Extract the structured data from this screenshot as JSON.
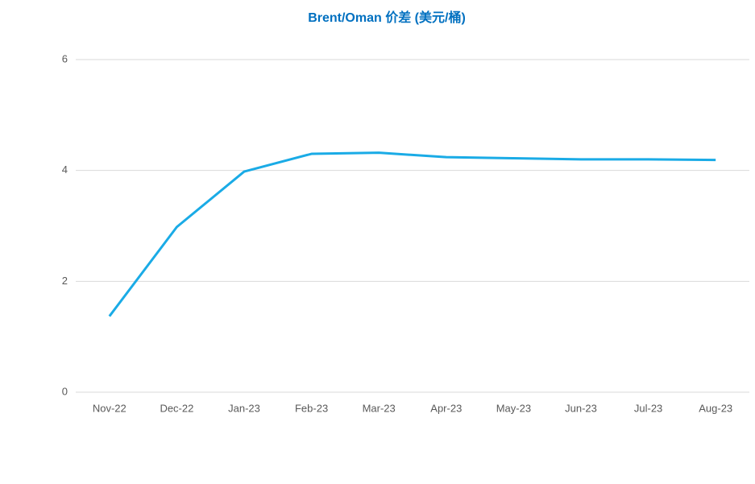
{
  "chart_data": {
    "type": "line",
    "title": "Brent/Oman 价差 (美元/桶)",
    "categories": [
      "Nov-22",
      "Dec-22",
      "Jan-23",
      "Feb-23",
      "Mar-23",
      "Apr-23",
      "May-23",
      "Jun-23",
      "Jul-23",
      "Aug-23"
    ],
    "series": [
      {
        "name": "Brent/Oman",
        "color": "#1aabe6",
        "values": [
          1.37,
          2.98,
          3.98,
          4.3,
          4.32,
          4.24,
          4.22,
          4.2,
          4.2,
          4.19
        ]
      }
    ],
    "ylim": [
      0,
      6
    ],
    "yticks": [
      0,
      2,
      4,
      6
    ],
    "grid": true
  }
}
